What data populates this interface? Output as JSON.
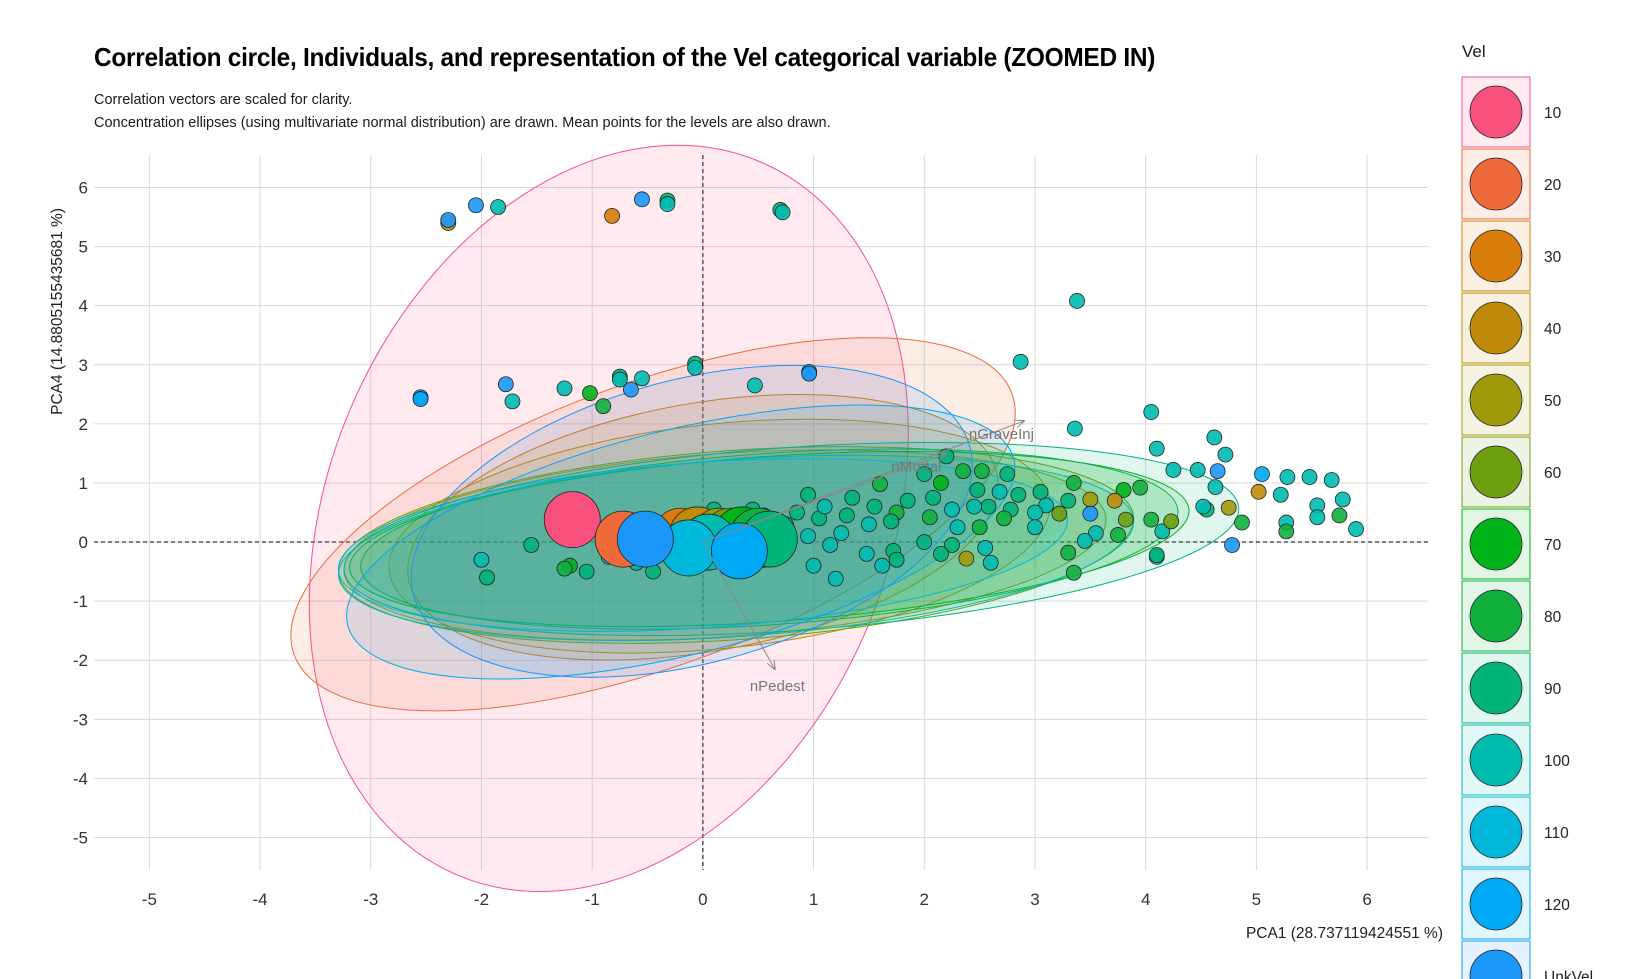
{
  "chart_data": {
    "type": "scatter",
    "title": "Correlation circle, Individuals, and representation of the Vel categorical variable (ZOOMED IN)",
    "subtitle_lines": [
      "Correlation vectors are scaled for clarity.",
      "Concentration ellipses (using multivariate normal distribution) are drawn. Mean points for the levels are also drawn."
    ],
    "xlabel": "PCA1 (28.737119424551 %)",
    "ylabel": "PCA4 (14.8805155435681 %)",
    "xlim": [
      -5.5,
      6.55
    ],
    "ylim": [
      -5.55,
      6.55
    ],
    "x_ticks": [
      -5,
      -4,
      -3,
      -2,
      -1,
      0,
      1,
      2,
      3,
      4,
      5,
      6
    ],
    "y_ticks": [
      -5,
      -4,
      -3,
      -2,
      -1,
      0,
      1,
      2,
      3,
      4,
      5,
      6
    ],
    "grid": true,
    "reference_lines": {
      "x": 0,
      "y": 0,
      "style": "dashed"
    },
    "legend": {
      "title": "Vel",
      "position": "right",
      "levels": [
        {
          "label": "10",
          "color": "#F8517E"
        },
        {
          "label": "20",
          "color": "#EE6A3A"
        },
        {
          "label": "30",
          "color": "#D87D0A"
        },
        {
          "label": "40",
          "color": "#C08A0A"
        },
        {
          "label": "50",
          "color": "#A09A0A"
        },
        {
          "label": "60",
          "color": "#6CA00E"
        },
        {
          "label": "70",
          "color": "#00B31A"
        },
        {
          "label": "80",
          "color": "#11B03E"
        },
        {
          "label": "90",
          "color": "#00B47A"
        },
        {
          "label": "100",
          "color": "#00BBB0"
        },
        {
          "label": "110",
          "color": "#00B9DA"
        },
        {
          "label": "120",
          "color": "#00A9F4"
        },
        {
          "label": "UnkVel",
          "color": "#1C97F8"
        }
      ]
    },
    "vectors": [
      {
        "label": "nGraveInj",
        "x": 2.9,
        "y": 2.05
      },
      {
        "label": "nMortal",
        "x": 2.2,
        "y": 1.5
      },
      {
        "label": "nPedest",
        "x": 0.65,
        "y": -2.15
      }
    ],
    "ellipses": [
      {
        "level": "10",
        "cx": -0.85,
        "cy": 0.4,
        "rx": 3.5,
        "ry": 4.75,
        "angle": -67
      },
      {
        "level": "20",
        "cx": -0.45,
        "cy": 0.3,
        "rx": 3.45,
        "ry": 2.4,
        "angle": -20
      },
      {
        "level": "30",
        "cx": 0.0,
        "cy": 0.25,
        "rx": 2.7,
        "ry": 2.1,
        "angle": -10
      },
      {
        "level": "40",
        "cx": 0.15,
        "cy": 0.1,
        "rx": 3.0,
        "ry": 1.9,
        "angle": -6
      },
      {
        "level": "50",
        "cx": 0.2,
        "cy": -0.05,
        "rx": 3.45,
        "ry": 1.55,
        "angle": -4
      },
      {
        "level": "60",
        "cx": 0.3,
        "cy": -0.05,
        "rx": 3.6,
        "ry": 1.6,
        "angle": -4
      },
      {
        "level": "70",
        "cx": 0.6,
        "cy": 0.05,
        "rx": 3.8,
        "ry": 1.4,
        "angle": -4
      },
      {
        "level": "80",
        "cx": 0.6,
        "cy": 0.05,
        "rx": 3.7,
        "ry": 1.45,
        "angle": -4
      },
      {
        "level": "90",
        "cx": 0.8,
        "cy": 0.05,
        "rx": 4.05,
        "ry": 1.55,
        "angle": -4
      },
      {
        "level": "100",
        "cx": 0.3,
        "cy": -0.1,
        "rx": 3.6,
        "ry": 1.5,
        "angle": -4
      },
      {
        "level": "110",
        "cx": 0.0,
        "cy": -0.05,
        "rx": 3.3,
        "ry": 1.4,
        "angle": -4
      },
      {
        "level": "120",
        "cx": -0.2,
        "cy": 0.0,
        "rx": 3.1,
        "ry": 1.9,
        "angle": -14
      },
      {
        "level": "UnkVel",
        "cx": -0.1,
        "cy": 0.35,
        "rx": 2.6,
        "ry": 2.4,
        "angle": -15
      }
    ],
    "means": [
      {
        "level": "10",
        "x": -1.18,
        "y": 0.38
      },
      {
        "level": "20",
        "x": -0.72,
        "y": 0.05
      },
      {
        "level": "30",
        "x": -0.2,
        "y": 0.1
      },
      {
        "level": "40",
        "x": -0.05,
        "y": 0.12
      },
      {
        "level": "50",
        "x": 0.15,
        "y": 0.1
      },
      {
        "level": "60",
        "x": 0.25,
        "y": 0.1
      },
      {
        "level": "70",
        "x": 0.35,
        "y": 0.12
      },
      {
        "level": "80",
        "x": 0.5,
        "y": 0.1
      },
      {
        "level": "90",
        "x": 0.6,
        "y": 0.05
      },
      {
        "level": "100",
        "x": 0.05,
        "y": 0.0
      },
      {
        "level": "110",
        "x": -0.13,
        "y": -0.1
      },
      {
        "level": "120",
        "x": 0.33,
        "y": -0.15
      },
      {
        "level": "UnkVel",
        "x": -0.52,
        "y": 0.05
      }
    ],
    "points": [
      {
        "x": -2.3,
        "y": 5.4,
        "level": "40"
      },
      {
        "x": -2.3,
        "y": 5.45,
        "level": "UnkVel"
      },
      {
        "x": -2.05,
        "y": 5.7,
        "level": "UnkVel"
      },
      {
        "x": -1.85,
        "y": 5.67,
        "level": "100"
      },
      {
        "x": -0.82,
        "y": 5.52,
        "level": "30"
      },
      {
        "x": -0.55,
        "y": 5.8,
        "level": "UnkVel"
      },
      {
        "x": -0.32,
        "y": 5.78,
        "level": "90"
      },
      {
        "x": -0.32,
        "y": 5.72,
        "level": "100"
      },
      {
        "x": 0.7,
        "y": 5.62,
        "level": "90"
      },
      {
        "x": 0.72,
        "y": 5.58,
        "level": "100"
      },
      {
        "x": 3.38,
        "y": 4.08,
        "level": "100"
      },
      {
        "x": 2.87,
        "y": 3.05,
        "level": "100"
      },
      {
        "x": -0.07,
        "y": 3.02,
        "level": "90"
      },
      {
        "x": -0.07,
        "y": 2.95,
        "level": "100"
      },
      {
        "x": 0.96,
        "y": 2.88,
        "level": "120"
      },
      {
        "x": 0.96,
        "y": 2.85,
        "level": "UnkVel"
      },
      {
        "x": -0.75,
        "y": 2.8,
        "level": "90"
      },
      {
        "x": -0.75,
        "y": 2.75,
        "level": "100"
      },
      {
        "x": -0.55,
        "y": 2.77,
        "level": "100"
      },
      {
        "x": -1.78,
        "y": 2.67,
        "level": "UnkVel"
      },
      {
        "x": -2.55,
        "y": 2.45,
        "level": "UnkVel"
      },
      {
        "x": -2.55,
        "y": 2.42,
        "level": "120"
      },
      {
        "x": -1.25,
        "y": 2.6,
        "level": "100"
      },
      {
        "x": -1.02,
        "y": 2.52,
        "level": "70"
      },
      {
        "x": -0.65,
        "y": 2.58,
        "level": "UnkVel"
      },
      {
        "x": 0.47,
        "y": 2.65,
        "level": "100"
      },
      {
        "x": -1.72,
        "y": 2.38,
        "level": "100"
      },
      {
        "x": -0.9,
        "y": 2.3,
        "level": "80"
      },
      {
        "x": 3.36,
        "y": 1.92,
        "level": "100"
      },
      {
        "x": 4.05,
        "y": 2.2,
        "level": "100"
      },
      {
        "x": 4.1,
        "y": 1.58,
        "level": "100"
      },
      {
        "x": 4.62,
        "y": 1.77,
        "level": "100"
      },
      {
        "x": 4.72,
        "y": 1.48,
        "level": "100"
      },
      {
        "x": 4.25,
        "y": 1.22,
        "level": "100"
      },
      {
        "x": 4.47,
        "y": 1.22,
        "level": "100"
      },
      {
        "x": 4.65,
        "y": 1.2,
        "level": "UnkVel"
      },
      {
        "x": 4.63,
        "y": 0.93,
        "level": "100"
      },
      {
        "x": 5.05,
        "y": 1.15,
        "level": "120"
      },
      {
        "x": 5.28,
        "y": 1.1,
        "level": "100"
      },
      {
        "x": 5.48,
        "y": 1.1,
        "level": "100"
      },
      {
        "x": 5.68,
        "y": 1.05,
        "level": "100"
      },
      {
        "x": 5.22,
        "y": 0.8,
        "level": "100"
      },
      {
        "x": 5.02,
        "y": 0.85,
        "level": "40"
      },
      {
        "x": 4.75,
        "y": 0.58,
        "level": "50"
      },
      {
        "x": 5.78,
        "y": 0.72,
        "level": "100"
      },
      {
        "x": 5.55,
        "y": 0.62,
        "level": "100"
      },
      {
        "x": 5.75,
        "y": 0.45,
        "level": "80"
      },
      {
        "x": 5.55,
        "y": 0.42,
        "level": "100"
      },
      {
        "x": 5.9,
        "y": 0.22,
        "level": "100"
      },
      {
        "x": 5.27,
        "y": 0.33,
        "level": "100"
      },
      {
        "x": 5.27,
        "y": 0.18,
        "level": "80"
      },
      {
        "x": 4.87,
        "y": 0.33,
        "level": "80"
      },
      {
        "x": 4.78,
        "y": -0.05,
        "level": "UnkVel"
      },
      {
        "x": 4.55,
        "y": 0.55,
        "level": "90"
      },
      {
        "x": 4.52,
        "y": 0.6,
        "level": "100"
      },
      {
        "x": 4.15,
        "y": 0.18,
        "level": "100"
      },
      {
        "x": 4.1,
        "y": -0.25,
        "level": "100"
      },
      {
        "x": 4.1,
        "y": -0.22,
        "level": "90"
      },
      {
        "x": 4.23,
        "y": 0.35,
        "level": "60"
      },
      {
        "x": 4.05,
        "y": 0.38,
        "level": "80"
      },
      {
        "x": 3.95,
        "y": 0.92,
        "level": "80"
      },
      {
        "x": 3.8,
        "y": 0.88,
        "level": "70"
      },
      {
        "x": 3.82,
        "y": 0.38,
        "level": "60"
      },
      {
        "x": 3.75,
        "y": 0.12,
        "level": "80"
      },
      {
        "x": 3.72,
        "y": 0.7,
        "level": "40"
      },
      {
        "x": 3.5,
        "y": 0.72,
        "level": "50"
      },
      {
        "x": 3.5,
        "y": 0.48,
        "level": "UnkVel"
      },
      {
        "x": 3.55,
        "y": 0.15,
        "level": "100"
      },
      {
        "x": 3.45,
        "y": 0.02,
        "level": "100"
      },
      {
        "x": 3.35,
        "y": 1.0,
        "level": "80"
      },
      {
        "x": 3.3,
        "y": 0.7,
        "level": "90"
      },
      {
        "x": 3.22,
        "y": 0.48,
        "level": "60"
      },
      {
        "x": 3.1,
        "y": 0.62,
        "level": "100"
      },
      {
        "x": 3.05,
        "y": 0.85,
        "level": "90"
      },
      {
        "x": 3.0,
        "y": 0.5,
        "level": "100"
      },
      {
        "x": 3.0,
        "y": 0.25,
        "level": "100"
      },
      {
        "x": 3.3,
        "y": -0.18,
        "level": "80"
      },
      {
        "x": 3.35,
        "y": -0.52,
        "level": "80"
      },
      {
        "x": 2.85,
        "y": 0.8,
        "level": "90"
      },
      {
        "x": 2.78,
        "y": 0.55,
        "level": "90"
      },
      {
        "x": 2.75,
        "y": 1.15,
        "level": "90"
      },
      {
        "x": 2.72,
        "y": 0.4,
        "level": "80"
      },
      {
        "x": 2.68,
        "y": 0.85,
        "level": "100"
      },
      {
        "x": 2.58,
        "y": 0.6,
        "level": "90"
      },
      {
        "x": 2.52,
        "y": 1.2,
        "level": "80"
      },
      {
        "x": 2.48,
        "y": 0.88,
        "level": "90"
      },
      {
        "x": 2.5,
        "y": 0.25,
        "level": "80"
      },
      {
        "x": 2.55,
        "y": -0.1,
        "level": "100"
      },
      {
        "x": 2.6,
        "y": -0.35,
        "level": "100"
      },
      {
        "x": 2.45,
        "y": 0.6,
        "level": "100"
      },
      {
        "x": 2.35,
        "y": 1.2,
        "level": "80"
      },
      {
        "x": 2.3,
        "y": 0.25,
        "level": "100"
      },
      {
        "x": 2.25,
        "y": -0.05,
        "level": "90"
      },
      {
        "x": 2.38,
        "y": -0.28,
        "level": "50"
      },
      {
        "x": 2.2,
        "y": 1.45,
        "level": "90"
      },
      {
        "x": 2.15,
        "y": 1.0,
        "level": "70"
      },
      {
        "x": 2.08,
        "y": 0.75,
        "level": "90"
      },
      {
        "x": 2.05,
        "y": 0.42,
        "level": "80"
      },
      {
        "x": 2.0,
        "y": 0.0,
        "level": "90"
      },
      {
        "x": 2.15,
        "y": -0.2,
        "level": "90"
      },
      {
        "x": 2.25,
        "y": 0.55,
        "level": "100"
      },
      {
        "x": 2.0,
        "y": 1.15,
        "level": "90"
      },
      {
        "x": 1.85,
        "y": 0.7,
        "level": "90"
      },
      {
        "x": 1.75,
        "y": 0.5,
        "level": "80"
      },
      {
        "x": 1.7,
        "y": 0.35,
        "level": "90"
      },
      {
        "x": 1.72,
        "y": -0.15,
        "level": "90"
      },
      {
        "x": 1.75,
        "y": -0.3,
        "level": "90"
      },
      {
        "x": 1.6,
        "y": 0.98,
        "level": "80"
      },
      {
        "x": 1.55,
        "y": 0.6,
        "level": "90"
      },
      {
        "x": 1.5,
        "y": 0.3,
        "level": "100"
      },
      {
        "x": 1.48,
        "y": -0.2,
        "level": "100"
      },
      {
        "x": 1.62,
        "y": -0.4,
        "level": "100"
      },
      {
        "x": 1.35,
        "y": 0.75,
        "level": "90"
      },
      {
        "x": 1.3,
        "y": 0.45,
        "level": "90"
      },
      {
        "x": 1.25,
        "y": 0.15,
        "level": "100"
      },
      {
        "x": 1.15,
        "y": -0.05,
        "level": "100"
      },
      {
        "x": 1.05,
        "y": 0.4,
        "level": "90"
      },
      {
        "x": 0.95,
        "y": 0.8,
        "level": "90"
      },
      {
        "x": 0.95,
        "y": 0.1,
        "level": "100"
      },
      {
        "x": 1.0,
        "y": -0.4,
        "level": "100"
      },
      {
        "x": 1.2,
        "y": -0.62,
        "level": "100"
      },
      {
        "x": 0.85,
        "y": 0.5,
        "level": "90"
      },
      {
        "x": 0.75,
        "y": 0.3,
        "level": "90"
      },
      {
        "x": 0.55,
        "y": -0.3,
        "level": "100"
      },
      {
        "x": 0.45,
        "y": 0.55,
        "level": "90"
      },
      {
        "x": 0.3,
        "y": -0.35,
        "level": "100"
      },
      {
        "x": 0.1,
        "y": 0.55,
        "level": "90"
      },
      {
        "x": 0.05,
        "y": -0.3,
        "level": "100"
      },
      {
        "x": -0.15,
        "y": -0.3,
        "level": "90"
      },
      {
        "x": -0.45,
        "y": -0.5,
        "level": "90"
      },
      {
        "x": -0.6,
        "y": -0.35,
        "level": "100"
      },
      {
        "x": -0.85,
        "y": -0.25,
        "level": "100"
      },
      {
        "x": -1.05,
        "y": -0.5,
        "level": "90"
      },
      {
        "x": -1.2,
        "y": -0.4,
        "level": "70"
      },
      {
        "x": -1.25,
        "y": -0.45,
        "level": "80"
      },
      {
        "x": -1.55,
        "y": -0.05,
        "level": "90"
      },
      {
        "x": -2.0,
        "y": -0.3,
        "level": "100"
      },
      {
        "x": -1.95,
        "y": -0.6,
        "level": "90"
      },
      {
        "x": 0.55,
        "y": 0.45,
        "level": "60"
      },
      {
        "x": 0.4,
        "y": 0.2,
        "level": "70"
      },
      {
        "x": 1.1,
        "y": 0.6,
        "level": "100"
      }
    ]
  }
}
